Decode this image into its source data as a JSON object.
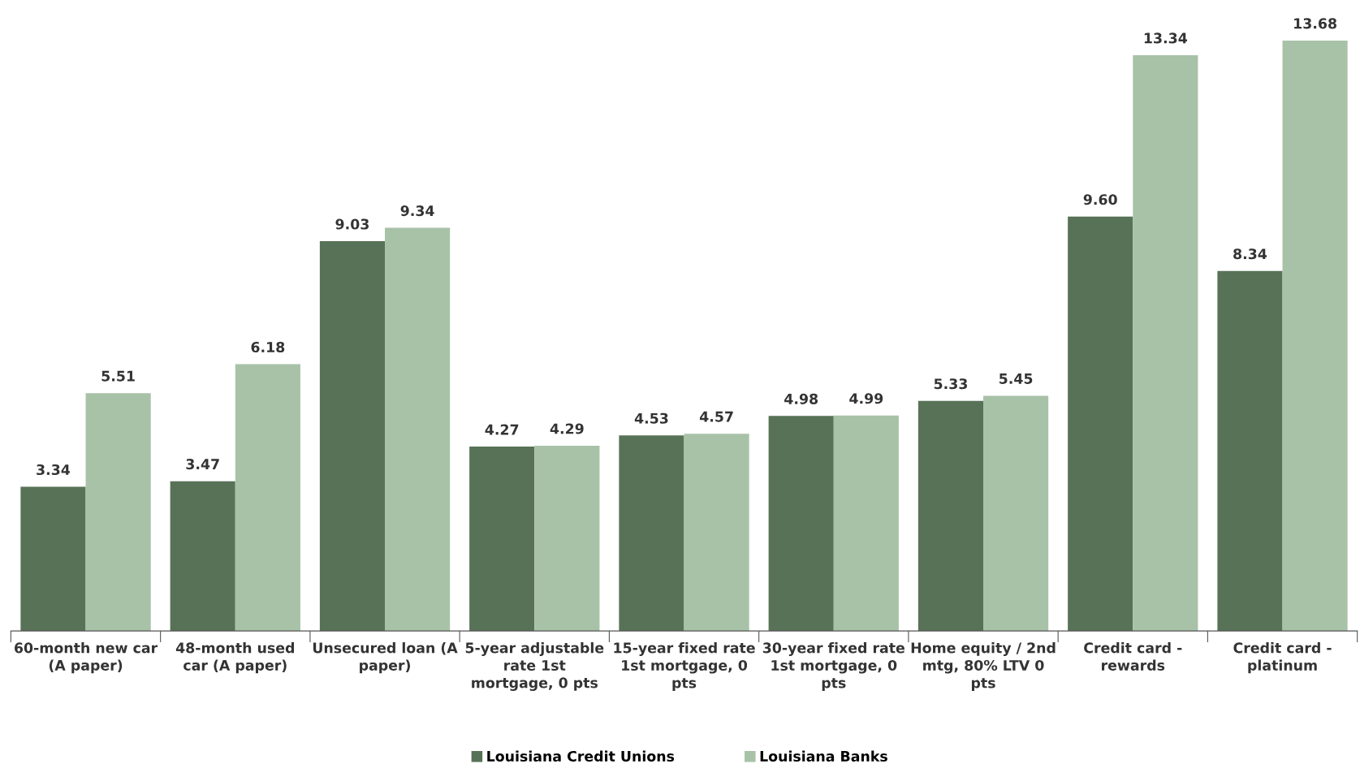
{
  "chart_data": {
    "type": "bar",
    "categories": [
      "60-month new car (A paper)",
      "48-month used car (A paper)",
      "Unsecured loan (A paper)",
      "5-year adjustable rate 1st mortgage, 0 pts",
      "15-year fixed rate 1st mortgage, 0 pts",
      "30-year fixed rate 1st mortgage, 0 pts",
      "Home equity / 2nd mtg, 80% LTV 0 pts",
      "Credit card - rewards",
      "Credit card - platinum"
    ],
    "series": [
      {
        "name": "Louisiana Credit Unions",
        "color": "#587257",
        "values": [
          3.34,
          3.47,
          9.03,
          4.27,
          4.53,
          4.98,
          5.33,
          9.6,
          8.34
        ],
        "value_labels": [
          "3.34",
          "3.47",
          "9.03",
          "4.27",
          "4.53",
          "4.98",
          "5.33",
          "9.60",
          "8.34"
        ]
      },
      {
        "name": "Louisiana Banks",
        "color": "#a8c2a8",
        "values": [
          5.51,
          6.18,
          9.34,
          4.29,
          4.57,
          4.99,
          5.45,
          13.34,
          13.68
        ],
        "value_labels": [
          "5.51",
          "6.18",
          "9.34",
          "4.29",
          "4.57",
          "4.99",
          "5.45",
          "13.34",
          "13.68"
        ]
      }
    ],
    "legend": "bottom",
    "grid": false
  }
}
